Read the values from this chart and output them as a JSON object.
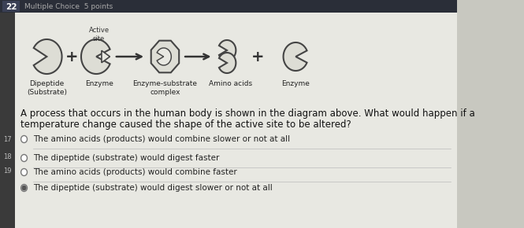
{
  "bg_color": "#c8c8c0",
  "content_bg": "#e8e8e2",
  "header_bg": "#2a2e38",
  "header_num_bg": "#3a4055",
  "header_num": "22",
  "header_text": "Multiple Choice  5 points",
  "active_site_label": "Active\nsite",
  "diagram_labels": [
    "Dipeptide\n(Substrate)",
    "Enzyme",
    "Enzyme-substrate\ncomplex",
    "Amino acids",
    "Enzyme"
  ],
  "question_line1": "A process that occurs in the human body is shown in the diagram above. What would happen if a",
  "question_line2": "temperature change caused the shape of the active site to be altered?",
  "choices": [
    "The amino acids (products) would combine slower or not at all",
    "The dipeptide (substrate) would digest faster",
    "The amino acids (products) would combine faster",
    "The dipeptide (substrate) would digest slower or not at all"
  ],
  "choice_numbers": [
    "17",
    "18",
    "19",
    ""
  ],
  "selected_choice": 3,
  "sidebar_bg": "#3a3a3a",
  "icon_fill": "#ddddd5",
  "icon_edge": "#444444",
  "icon_lw": 1.5
}
